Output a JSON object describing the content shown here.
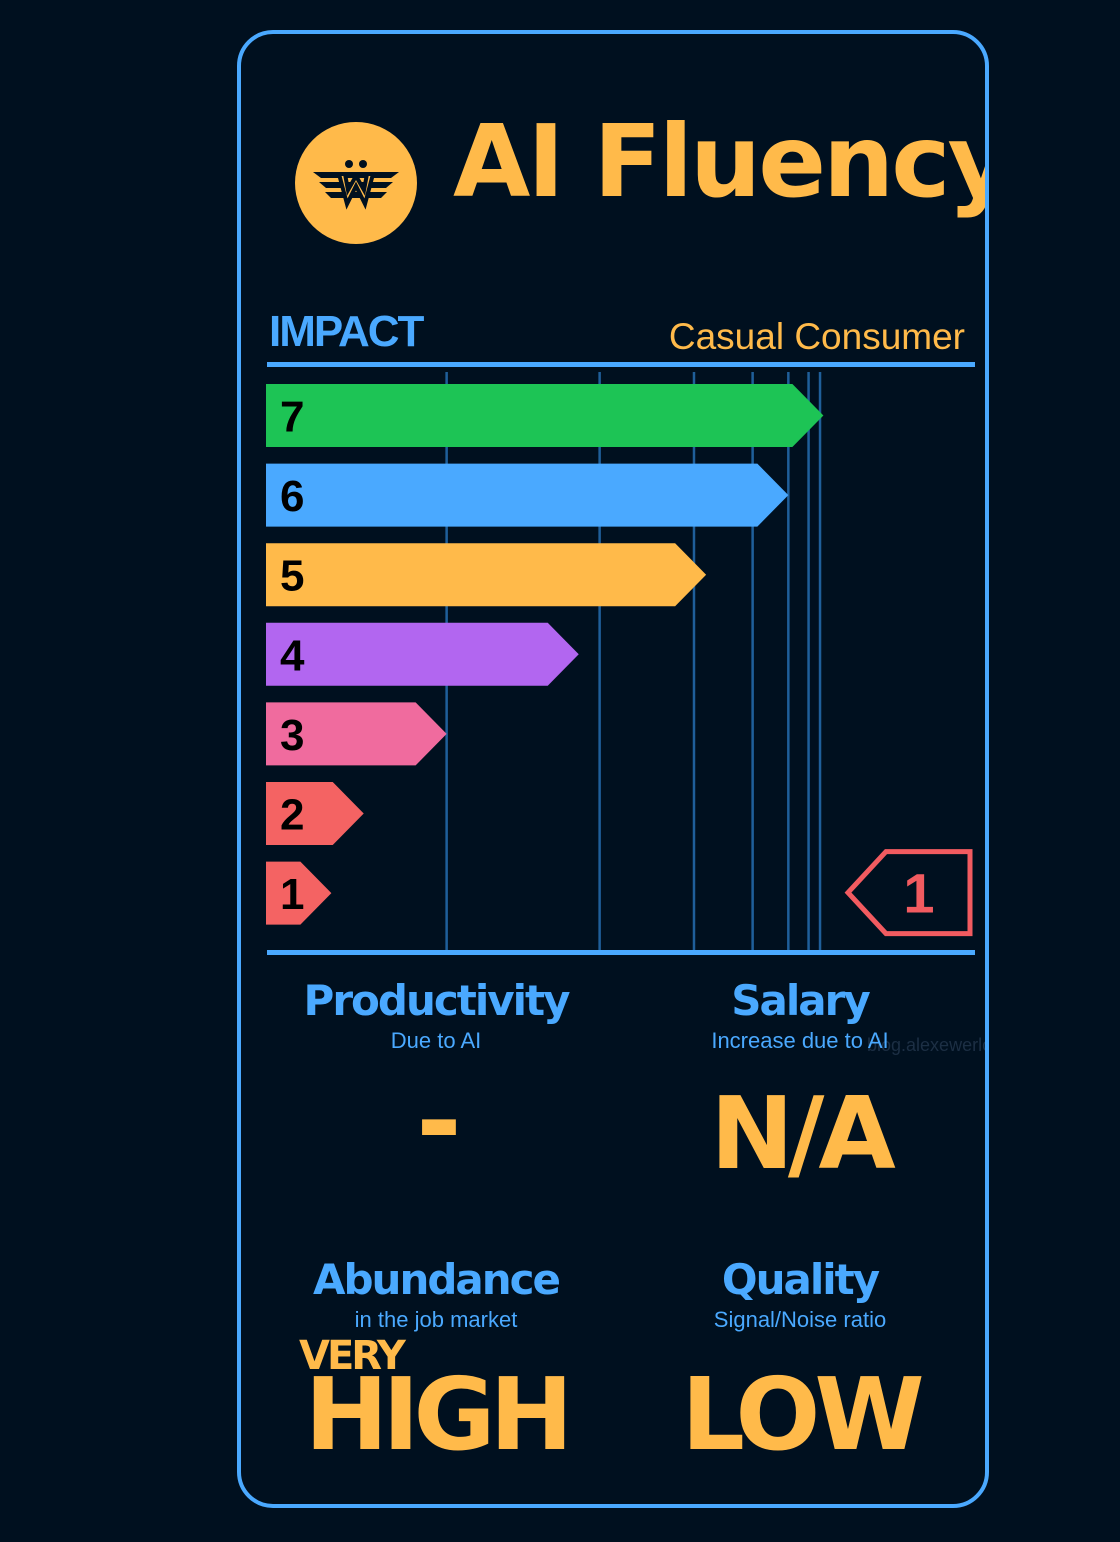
{
  "title": "AI Fluency",
  "impact_label": "IMPACT",
  "level_label": "Casual Consumer",
  "watermark": "blog.alexewerlof.com",
  "colors": {
    "accent_blue": "#4aa9ff",
    "accent_yellow": "#ffba4a",
    "background": "#00101f",
    "marker": "#f25b60"
  },
  "chart_data": {
    "type": "bar",
    "orientation": "horizontal",
    "categories": [
      "7",
      "6",
      "5",
      "4",
      "3",
      "2",
      "1"
    ],
    "values": [
      7,
      6,
      5,
      4,
      3,
      2,
      1
    ],
    "bar_lengths": [
      82.7,
      77.5,
      65.3,
      46.4,
      26.8,
      14.5,
      9.7
    ],
    "colors": [
      "#1dc455",
      "#4aa9ff",
      "#ffba4a",
      "#b266f0",
      "#f06b9e",
      "#f46363",
      "#f46363"
    ],
    "current_level": "1",
    "gridline_positions": [
      26.8,
      49.5,
      63.5,
      72.2,
      77.5,
      80.5,
      82.2
    ]
  },
  "metrics": [
    {
      "heading": "Productivity",
      "sub": "Due to AI",
      "value": "-"
    },
    {
      "heading": "Salary",
      "sub": "Increase due to AI",
      "value": "N/A"
    },
    {
      "heading": "Abundance",
      "sub": "in the job market",
      "prefix": "VERY",
      "value": "HIGH"
    },
    {
      "heading": "Quality",
      "sub": "Signal/Noise ratio",
      "value": "LOW"
    }
  ]
}
